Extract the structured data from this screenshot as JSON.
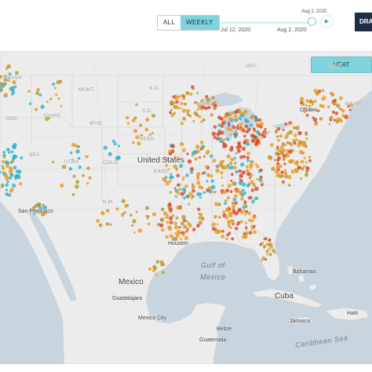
{
  "header": {
    "toggle": {
      "all_label": "ALL",
      "weekly_label": "WEEKLY",
      "selected": "WEEKLY"
    },
    "timeline": {
      "current_label": "Aug 2, 2020",
      "start_label": "Jul 12, 2020",
      "end_label": "Aug 2, 2020",
      "progress": 0.95
    },
    "draw_button_label": "DRA"
  },
  "map": {
    "heat_button_label": "HEAT",
    "labels": {
      "ont": "ONT.",
      "que": "QUE.",
      "wash": "WASH.",
      "mont": "MONT.",
      "idaho": "IDAHO",
      "ore": "ORE.",
      "wyo": "WYO.",
      "nd": "N.D.",
      "sd": "S.D.",
      "minn": "MINN.",
      "nebr": "NEBR.",
      "nev": "NEV.",
      "utah": "UTAH",
      "colo": "COLO.",
      "kans": "KANS.",
      "nm": "N.M.",
      "maine": "MAINE",
      "ottawa": "Ottawa",
      "united_states": "United States",
      "san_francisco": "San Francisco",
      "houston": "Houston",
      "gulf_of_mexico": "Gulf of Mexico",
      "mexico": "Mexico",
      "guadalajara": "Guadalajara",
      "mexico_city": "Mexico City",
      "cuba": "Cuba",
      "bahamas": "Bahamas",
      "belize": "Belize",
      "guatemala": "Guatemala",
      "haiti": "Haiti",
      "jamaica": "Jamaica",
      "caribbean_sea": "Caribbean Sea"
    },
    "colors": {
      "water": "#c8d4de",
      "land": "#ececec",
      "points_hot": "#d9472b",
      "points_warm": "#ec9a1e",
      "points_cool": "#2fb3cc",
      "points_olive": "#b9962e"
    }
  }
}
